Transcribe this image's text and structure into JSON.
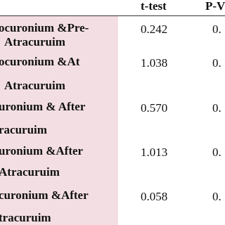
{
  "table": {
    "header": [
      "t-test",
      "P-V"
    ],
    "rows": [
      {
        "label": [
          "ocuronium &Pre-",
          "Atracuruim"
        ],
        "t_test": "0.242",
        "p_value": "0."
      },
      {
        "label": [
          "ocuronium &At",
          "Atracuruim"
        ],
        "t_test": "1.038",
        "p_value": "0."
      },
      {
        "label": [
          "uronium & After",
          "racuruim"
        ],
        "t_test": "0.570",
        "p_value": "0."
      },
      {
        "label": [
          "uronium &After",
          "Atracuruim"
        ],
        "t_test": "1.013",
        "p_value": "0."
      },
      {
        "label": [
          "curonium &After",
          "tracuruim"
        ],
        "t_test": "0.058",
        "p_value": "0."
      }
    ]
  }
}
